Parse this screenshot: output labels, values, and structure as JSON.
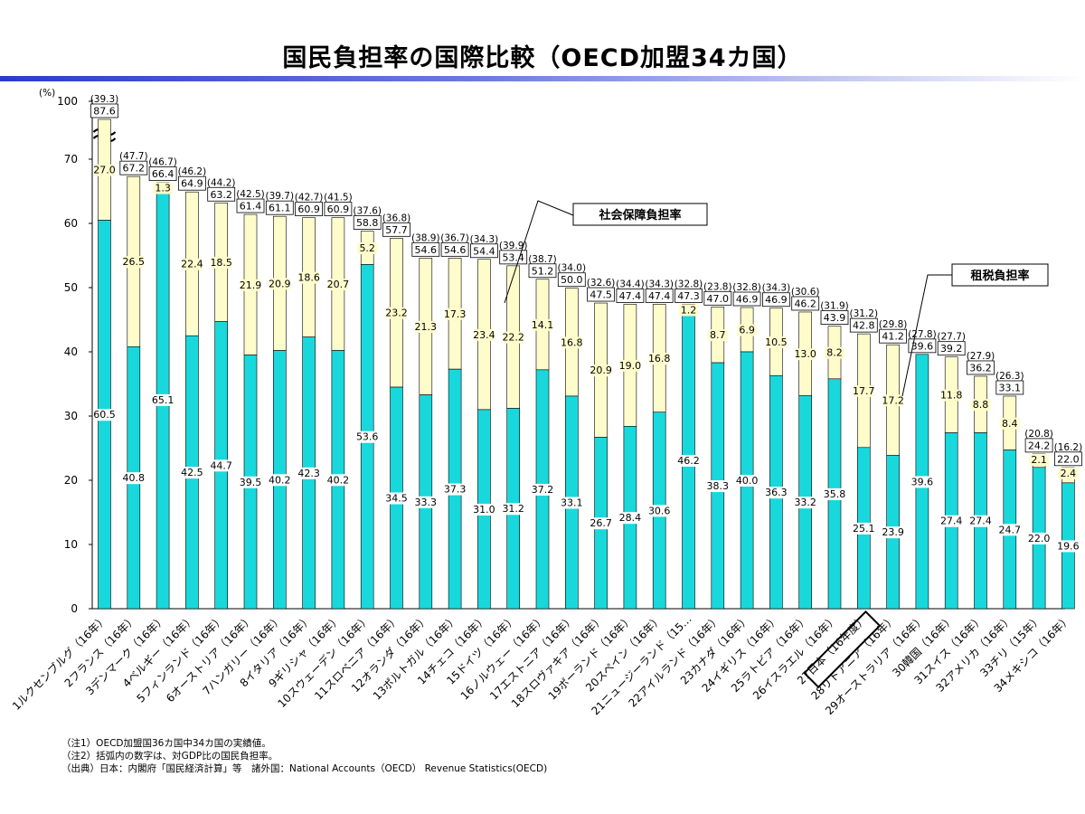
{
  "title": "国民負担率の国際比較（OECD加盟34カ国）",
  "chart_data": {
    "type": "bar",
    "stacked": true,
    "ylabel": "(%)",
    "ylim": [
      0,
      100
    ],
    "y_axis_break": true,
    "yticks": [
      "0",
      "10",
      "20",
      "30",
      "40",
      "50",
      "60",
      "70",
      "100"
    ],
    "categories": [
      "1ルクセンブルグ（16年）",
      "2フランス（16年）",
      "3デンマーク（16年）",
      "4ベルギー（16年）",
      "5フィンランド（16年）",
      "6オーストリア（16年）",
      "7ハンガリー（16年）",
      "8イタリア（16年）",
      "9ギリシャ（16年）",
      "10スウェーデン（16年）",
      "11スロベニア（16年）",
      "12オランダ（16年）",
      "13ポルトガル（16年）",
      "14チェコ（16年）",
      "15ドイツ（16年）",
      "16ノルウェー（16年）",
      "17エストニア（16年）",
      "18スロヴァキア（16年）",
      "19ポーランド（16年）",
      "20スペイン（16年）",
      "21ニュージーランド（15…",
      "22アイルランド（16年）",
      "23カナダ（16年）",
      "24イギリス（16年）",
      "25ラトビア（16年）",
      "26イスラエル（16年）",
      "27日本（16年度）",
      "28リトアニア（16年）",
      "29オーストラリア（16年）",
      "30韓国（16年）",
      "31スイス（16年）",
      "32アメリカ（16年）",
      "33チリ（15年）",
      "34メキシコ（16年）"
    ],
    "highlight_category": "27日本（16年度）",
    "series": [
      {
        "name": "租税負担率",
        "color": "#19d8dc",
        "values": [
          60.5,
          40.8,
          65.1,
          42.5,
          44.7,
          39.5,
          40.2,
          42.3,
          40.2,
          53.6,
          34.5,
          33.3,
          37.3,
          31.0,
          31.2,
          37.2,
          33.1,
          26.7,
          28.4,
          30.6,
          46.2,
          38.3,
          40.0,
          36.3,
          33.2,
          35.8,
          25.1,
          23.9,
          39.6,
          27.4,
          27.4,
          24.7,
          22.0,
          19.6
        ],
        "label_flags": [
          1,
          1,
          1,
          1,
          1,
          1,
          1,
          1,
          1,
          1,
          1,
          1,
          1,
          1,
          1,
          1,
          1,
          1,
          1,
          1,
          1,
          1,
          1,
          1,
          1,
          1,
          1,
          1,
          1,
          1,
          1,
          1,
          1,
          1
        ]
      },
      {
        "name": "社会保障負担率",
        "color": "#fffccc",
        "values": [
          27.0,
          26.5,
          1.3,
          22.4,
          18.5,
          21.9,
          20.9,
          18.6,
          20.7,
          5.2,
          23.2,
          21.3,
          17.3,
          23.4,
          22.2,
          14.1,
          16.8,
          20.9,
          19.0,
          16.8,
          1.2,
          8.7,
          6.9,
          10.5,
          13.0,
          8.2,
          17.7,
          17.2,
          0,
          11.8,
          8.8,
          8.4,
          2.1,
          2.4
        ],
        "label_flags": [
          1,
          1,
          1,
          1,
          1,
          1,
          1,
          1,
          1,
          1,
          1,
          1,
          1,
          1,
          1,
          1,
          1,
          1,
          1,
          1,
          1,
          1,
          1,
          1,
          1,
          1,
          1,
          1,
          0,
          1,
          1,
          1,
          1,
          1
        ]
      }
    ],
    "totals": [
      "87.6",
      "67.2",
      "66.4",
      "64.9",
      "63.2",
      "61.4",
      "61.1",
      "60.9",
      "60.9",
      "58.8",
      "57.7",
      "54.6",
      "54.6",
      "54.4",
      "53.4",
      "51.2",
      "50.0",
      "47.5",
      "47.4",
      "47.4",
      "47.3",
      "47.0",
      "46.9",
      "46.9",
      "46.2",
      "43.9",
      "42.8",
      "41.2",
      "39.6",
      "39.2",
      "36.2",
      "33.1",
      "24.2",
      "22.0"
    ],
    "gdp_ratio": [
      "(39.3)",
      "(47.7)",
      "(46.7)",
      "(46.2)",
      "(44.2)",
      "(42.5)",
      "(39.7)",
      "(42.7)",
      "(41.5)",
      "(37.6)",
      "(36.8)",
      "(38.9)",
      "(36.7)",
      "(34.3)",
      "(39.9)",
      "(38.7)",
      "(34.0)",
      "(32.6)",
      "(34.4)",
      "(34.3)",
      "(32.8)",
      "(23.8)",
      "(32.8)",
      "(34.3)",
      "(30.6)",
      "(31.9)",
      "(31.2)",
      "(29.8)",
      "(27.8)",
      "(27.7)",
      "(27.9)",
      "(26.3)",
      "(20.8)",
      "(16.2)"
    ],
    "annotations": [
      "社会保障負担率",
      "租税負担率"
    ]
  },
  "notes": [
    "（注1）OECD加盟国36カ国中34カ国の実績値。",
    "（注2）括弧内の数字は、対GDP比の国民負担率。",
    "（出典）日本：内閣府「国民経済計算」等　諸外国：National Accounts（OECD）  Revenue Statistics(OECD)"
  ]
}
